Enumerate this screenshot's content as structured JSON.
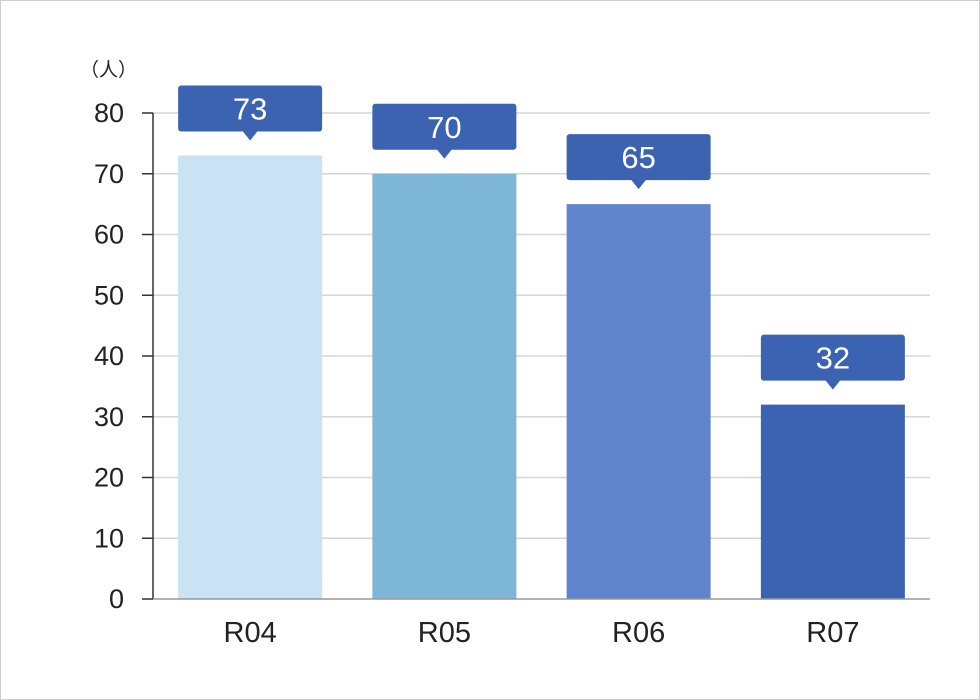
{
  "chart_data": {
    "type": "bar",
    "unit_label": "（人）",
    "categories": [
      "R04",
      "R05",
      "R06",
      "R07"
    ],
    "values": [
      73,
      70,
      65,
      32
    ],
    "value_labels": [
      "73",
      "70",
      "65",
      "32"
    ],
    "ylim": [
      0,
      80
    ],
    "yticks": [
      0,
      10,
      20,
      30,
      40,
      50,
      60,
      70,
      80
    ],
    "ytick_labels": [
      "0",
      "10",
      "20",
      "30",
      "40",
      "50",
      "60",
      "70",
      "80"
    ],
    "grid": true,
    "bar_colors": [
      "#c9e3f5",
      "#7eb6d8",
      "#6085cc",
      "#3c63b2"
    ],
    "callout_color": "#3c63b2"
  }
}
